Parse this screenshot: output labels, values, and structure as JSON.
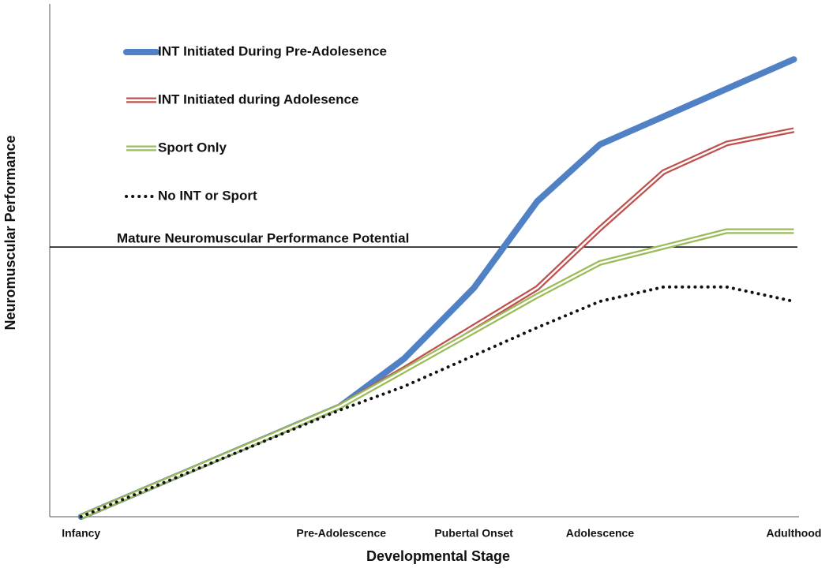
{
  "chart_data": {
    "type": "line",
    "x_label": "Developmental Stage",
    "y_label": "Neuromuscular Performance",
    "xlim": [
      -4.4,
      100.5
    ],
    "ylim": [
      0,
      100
    ],
    "xticks": [
      {
        "value": 0,
        "label": "Infancy"
      },
      {
        "value": 36.5,
        "label": "Pre-Adolescence"
      },
      {
        "value": 55.1,
        "label": "Pubertal Onset"
      },
      {
        "value": 72.8,
        "label": "Adolescence"
      },
      {
        "value": 100,
        "label": "Adulthood"
      }
    ],
    "reference_line": {
      "label": "Mature Neuromuscular Performance Potential",
      "value": 52.6
    },
    "legend": "upper left",
    "series": [
      {
        "name": "INT Initiated During Pre-Adolesence",
        "color": "#4f81c4",
        "style": "solid",
        "x": [
          0,
          36.3,
          45.3,
          55.1,
          64.0,
          72.8,
          100
        ],
        "values": [
          0,
          21.5,
          30.8,
          44.6,
          61.5,
          72.6,
          89.2
        ]
      },
      {
        "name": "INT Initiated during Adolesence",
        "color": "#c0504d",
        "style": "double",
        "x": [
          0,
          36.3,
          45.3,
          64.0,
          72.8,
          81.7,
          90.6,
          100
        ],
        "values": [
          0,
          21.5,
          28.8,
          44.6,
          56.2,
          67.2,
          72.8,
          75.4
        ]
      },
      {
        "name": "Sport Only",
        "color": "#9bbb59",
        "style": "double",
        "x": [
          0,
          36.3,
          45.3,
          64.0,
          72.8,
          81.7,
          90.6,
          100
        ],
        "values": [
          0,
          21.5,
          28.5,
          43.1,
          49.5,
          52.6,
          55.7,
          55.7
        ]
      },
      {
        "name": "No INT or Sport",
        "color": "#111111",
        "style": "dotted",
        "x": [
          0,
          36.3,
          45.3,
          64.0,
          72.8,
          81.7,
          90.6,
          100
        ],
        "values": [
          0,
          20.8,
          25.4,
          36.9,
          42.0,
          44.8,
          44.8,
          42.0
        ]
      }
    ]
  }
}
